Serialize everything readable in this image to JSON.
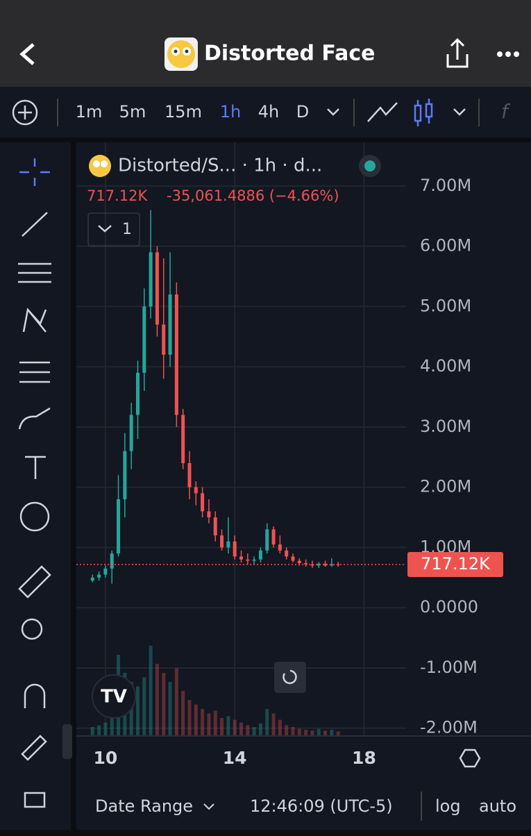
{
  "header": {
    "title": "Distorted Face"
  },
  "toolbar": {
    "intervals": [
      "1m",
      "5m",
      "15m",
      "1h",
      "4h",
      "D"
    ],
    "active_interval": 3
  },
  "legend": {
    "symbol": "Distorted/S... · 1h · d...",
    "price": "717.12K",
    "change": "-35,061.4886 (−4.66%)",
    "indicators_count": "1"
  },
  "chart_data": {
    "type": "candlestick",
    "x": [
      9.6,
      9.8,
      10.0,
      10.2,
      10.4,
      10.6,
      10.8,
      11.0,
      11.2,
      11.4,
      11.6,
      11.8,
      12.0,
      12.2,
      12.4,
      12.6,
      12.8,
      13.0,
      13.2,
      13.4,
      13.6,
      13.8,
      14.0,
      14.2,
      14.4,
      14.6,
      14.8,
      15.0,
      15.2,
      15.4,
      15.6,
      15.8,
      16.0,
      16.2,
      16.4,
      16.6,
      16.8,
      17.0,
      17.2
    ],
    "open": [
      0.45,
      0.5,
      0.55,
      0.65,
      0.9,
      1.8,
      2.6,
      3.2,
      3.9,
      5.0,
      5.9,
      4.7,
      4.2,
      5.2,
      3.2,
      2.4,
      2.0,
      1.9,
      1.6,
      1.5,
      1.2,
      1.0,
      1.1,
      0.85,
      0.8,
      0.78,
      0.8,
      0.95,
      1.3,
      1.05,
      0.95,
      0.85,
      0.78,
      0.74,
      0.72,
      0.7,
      0.73,
      0.7,
      0.72
    ],
    "high": [
      0.55,
      0.6,
      0.7,
      0.95,
      2.2,
      2.9,
      3.4,
      4.1,
      5.3,
      6.6,
      6.0,
      5.8,
      5.9,
      5.4,
      3.3,
      2.6,
      2.1,
      2.0,
      1.8,
      1.6,
      1.3,
      1.5,
      1.2,
      0.95,
      0.9,
      0.85,
      1.0,
      1.4,
      1.35,
      1.2,
      1.0,
      0.9,
      0.82,
      0.8,
      0.78,
      0.76,
      0.78,
      0.82,
      0.76
    ],
    "low": [
      0.42,
      0.45,
      0.5,
      0.4,
      0.85,
      1.5,
      2.3,
      2.8,
      3.6,
      4.8,
      4.5,
      3.8,
      4.0,
      3.0,
      2.3,
      1.8,
      1.7,
      1.5,
      1.4,
      1.1,
      0.95,
      0.9,
      0.8,
      0.75,
      0.72,
      0.72,
      0.75,
      0.9,
      1.0,
      0.9,
      0.8,
      0.75,
      0.7,
      0.68,
      0.66,
      0.66,
      0.68,
      0.68,
      0.68
    ],
    "close": [
      0.5,
      0.55,
      0.65,
      0.9,
      1.8,
      2.6,
      3.2,
      3.9,
      5.0,
      5.9,
      4.7,
      4.2,
      5.2,
      3.2,
      2.4,
      2.0,
      1.9,
      1.6,
      1.5,
      1.2,
      1.0,
      1.1,
      0.85,
      0.8,
      0.78,
      0.8,
      0.95,
      1.3,
      1.05,
      0.95,
      0.85,
      0.78,
      0.74,
      0.72,
      0.7,
      0.73,
      0.7,
      0.72,
      0.71712
    ],
    "volume": [
      10,
      12,
      15,
      40,
      90,
      70,
      60,
      55,
      65,
      100,
      80,
      70,
      60,
      75,
      50,
      40,
      35,
      30,
      25,
      28,
      20,
      22,
      18,
      15,
      12,
      10,
      14,
      30,
      25,
      18,
      12,
      10,
      8,
      7,
      6,
      8,
      6,
      7,
      5
    ],
    "up_color": "#26a69a",
    "down_color": "#ef5350",
    "xlim": [
      9.1,
      19.3
    ],
    "xticks": [
      10,
      14,
      18
    ],
    "ylim": [
      -2.13,
      7.61
    ],
    "yticks": [
      {
        "value": -2,
        "label": "-2.00M"
      },
      {
        "value": -1,
        "label": "-1.00M"
      },
      {
        "value": 0,
        "label": "0.0000"
      },
      {
        "value": 1,
        "label": "1.00M"
      },
      {
        "value": 2,
        "label": "2.00M"
      },
      {
        "value": 3,
        "label": "3.00M"
      },
      {
        "value": 4,
        "label": "4.00M"
      },
      {
        "value": 5,
        "label": "5.00M"
      },
      {
        "value": 6,
        "label": "6.00M"
      },
      {
        "value": 7,
        "label": "7.00M"
      }
    ],
    "last_price": {
      "value": 0.71712,
      "label": "717.12K"
    }
  },
  "footer": {
    "date_range": "Date Range",
    "time": "12:46:09 (UTC-5)",
    "log": "log",
    "auto": "auto"
  }
}
